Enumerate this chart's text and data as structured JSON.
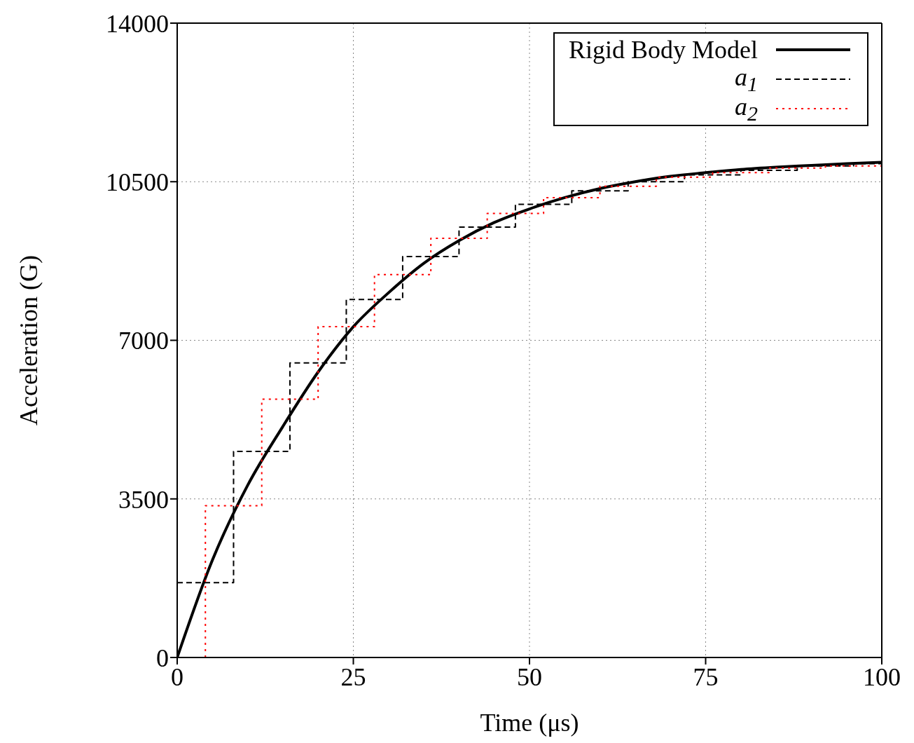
{
  "chart_data": {
    "type": "line",
    "xlabel": "Time (μs)",
    "ylabel": "Acceleration (G)",
    "xlim": [
      0,
      100
    ],
    "xticks": [
      0,
      25,
      50,
      75,
      100
    ],
    "ylim": [
      0,
      14000
    ],
    "yticks": [
      0,
      3500,
      7000,
      10500,
      14000
    ],
    "grid": true,
    "legend": "top right",
    "marker": "none",
    "series": [
      {
        "name": "Rigid Body Model",
        "line_style": "solid",
        "color": "#000000",
        "x": [
          0,
          5,
          10,
          15,
          20,
          25,
          30,
          35,
          40,
          45,
          50,
          55,
          60,
          65,
          70,
          75,
          80,
          85,
          90,
          95,
          100
        ],
        "values": [
          0,
          2150,
          3800,
          5100,
          6300,
          7300,
          8050,
          8700,
          9200,
          9600,
          9900,
          10150,
          10350,
          10500,
          10620,
          10700,
          10770,
          10820,
          10860,
          10900,
          10930
        ]
      },
      {
        "name": "a$_{1}$",
        "type": "step",
        "line_style": "dashed",
        "color": "#000000",
        "x": [
          0,
          8,
          16,
          24,
          32,
          40,
          48,
          56,
          64,
          72,
          80,
          88,
          96,
          100
        ],
        "values": [
          1650,
          4550,
          6500,
          7900,
          8850,
          9500,
          10000,
          10300,
          10500,
          10650,
          10750,
          10850,
          10900,
          10900
        ]
      },
      {
        "name": "a$_{2}$",
        "type": "step",
        "line_style": "dotted",
        "color": "#ff0000",
        "x": [
          4,
          4,
          12,
          20,
          28,
          36,
          44,
          52,
          60,
          68,
          76,
          84,
          92,
          100
        ],
        "values": [
          0,
          3350,
          5700,
          7300,
          8450,
          9250,
          9800,
          10150,
          10400,
          10600,
          10700,
          10800,
          10850,
          10850
        ]
      }
    ]
  }
}
